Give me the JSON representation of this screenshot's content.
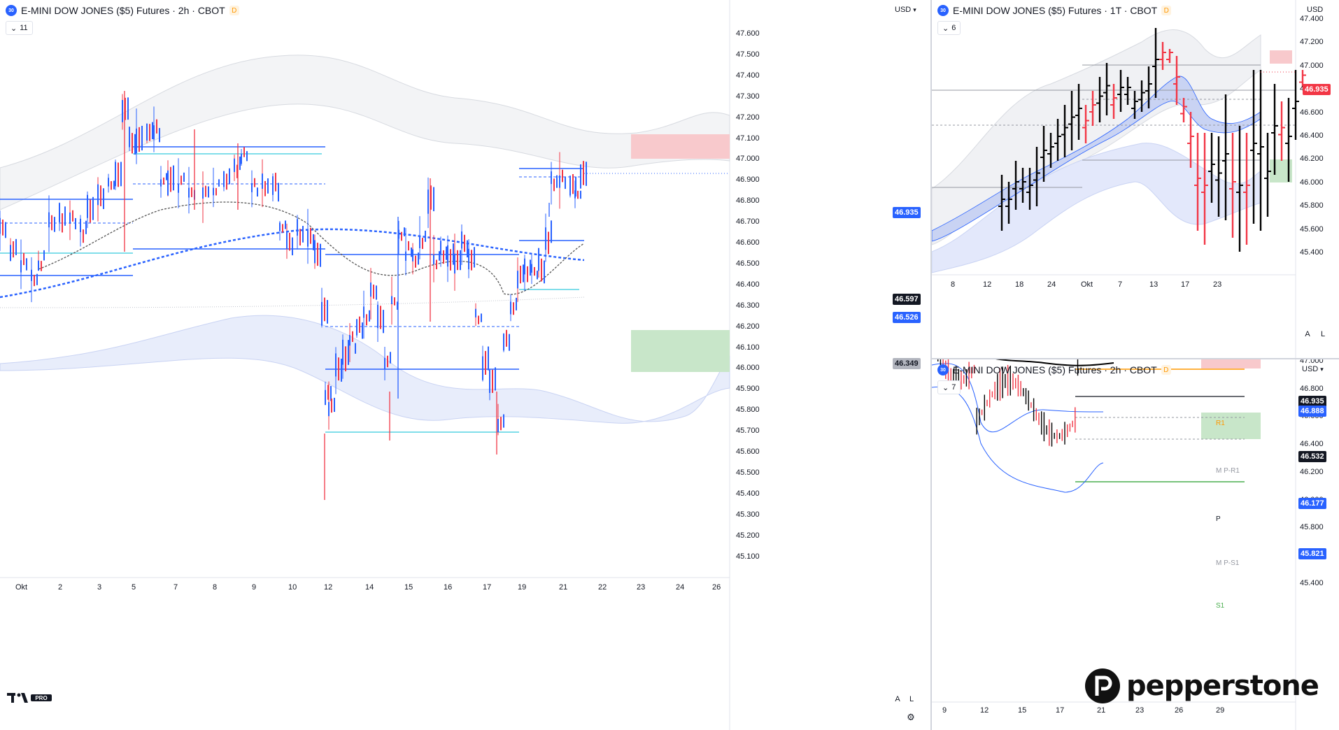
{
  "main": {
    "symbol_badge": "30",
    "title": "E-MINI DOW JONES ($5) Futures · 2h · CBOT",
    "d_badge": "D",
    "currency": "USD",
    "indicators_count": "11",
    "price_axis": [
      "47.600",
      "47.500",
      "47.400",
      "47.300",
      "47.200",
      "47.100",
      "47.000",
      "46.900",
      "46.800",
      "46.700",
      "46.600",
      "46.500",
      "46.400",
      "46.300",
      "46.200",
      "46.100",
      "46.000",
      "45.900",
      "45.800",
      "45.700",
      "45.600",
      "45.500",
      "45.400",
      "45.300",
      "45.200",
      "45.100"
    ],
    "time_axis": [
      "Okt",
      "2",
      "3",
      "5",
      "7",
      "8",
      "9",
      "10",
      "12",
      "14",
      "15",
      "16",
      "17",
      "19",
      "21",
      "22",
      "23",
      "24",
      "26"
    ],
    "tags": {
      "last": "46.935",
      "a": "46.597",
      "b": "46.526",
      "c": "46.349"
    },
    "btn_a": "A",
    "btn_l": "L"
  },
  "top_right": {
    "symbol_badge": "30",
    "title": "E-MINI DOW JONES ($5) Futures · 1T · CBOT",
    "d_badge": "D",
    "currency": "USD",
    "indicators_count": "6",
    "price_axis": [
      "47.400",
      "47.200",
      "47.000",
      "46.800",
      "46.600",
      "46.400",
      "46.200",
      "46.000",
      "45.800",
      "45.600",
      "45.400"
    ],
    "time_axis": [
      "8",
      "12",
      "18",
      "24",
      "Okt",
      "7",
      "13",
      "17",
      "23"
    ],
    "tags": {
      "last": "46.935"
    },
    "btn_a": "A",
    "btn_l": "L"
  },
  "bottom_right": {
    "symbol_badge": "30",
    "title": "E-MINI DOW JONES ($5) Futures · 2h · CBOT",
    "d_badge": "D",
    "currency": "USD",
    "indicators_count": "7",
    "price_axis": [
      "47.000",
      "46.800",
      "46.600",
      "46.400",
      "46.200",
      "46.000",
      "45.800",
      "45.600",
      "45.400"
    ],
    "time_axis": [
      "9",
      "12",
      "15",
      "17",
      "21",
      "23",
      "26",
      "29"
    ],
    "tags": {
      "last": "46.935",
      "a": "46.888",
      "b": "46.532",
      "c": "46.177",
      "d": "45.821"
    },
    "pivot_labels": {
      "r1": "R1",
      "mpr1": "M P-R1",
      "p": "P",
      "mps1": "M P-S1",
      "s1": "S1"
    },
    "btn_a": "A",
    "btn_l": "L"
  },
  "branding": {
    "tv": "TV PRO",
    "pepperstone": "pepperstone"
  },
  "colors": {
    "up": "#2962ff",
    "down": "#f23645",
    "bar_black": "#000000",
    "band": "#e3e8fb",
    "supply": "#f8c9cc",
    "demand": "#c8e6c9"
  }
}
